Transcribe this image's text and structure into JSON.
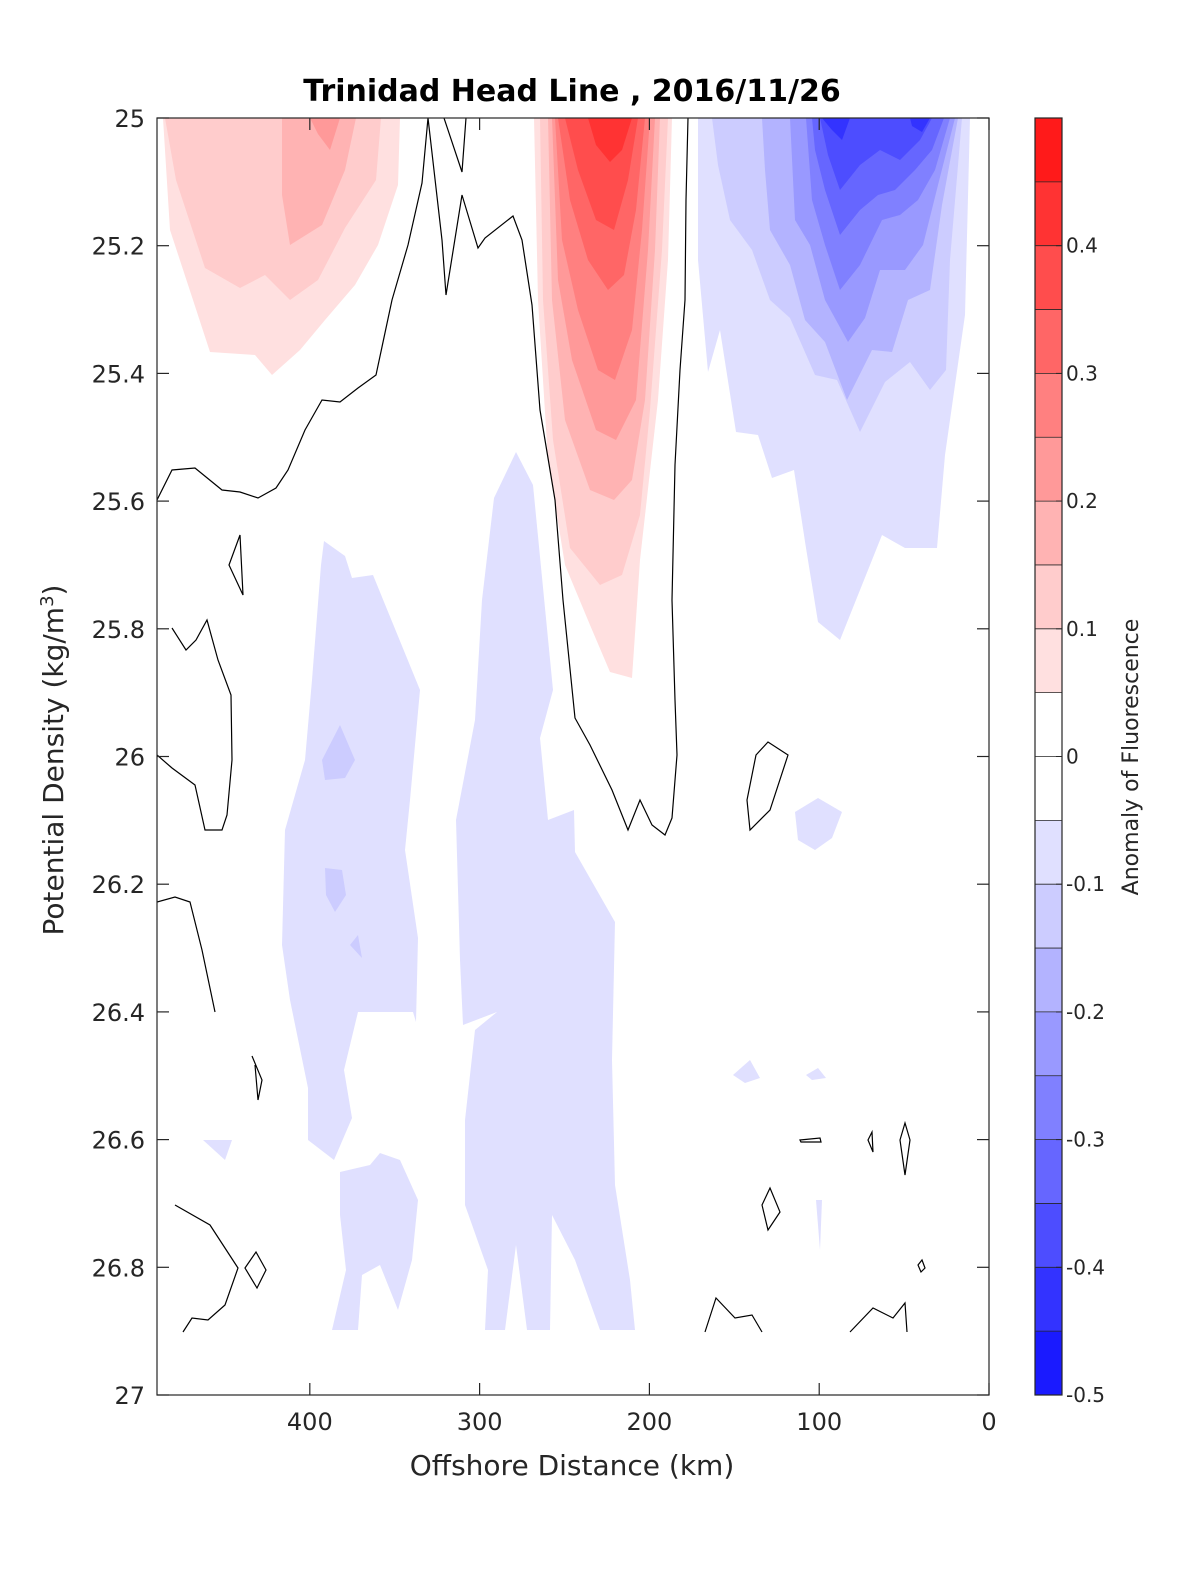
{
  "chart_data": {
    "type": "heatmap",
    "subtype": "filled-contour",
    "title": "Trinidad Head Line , 2016/11/26",
    "xlabel": "Offshore Distance (km)",
    "ylabel": "Potential Density (kg/m",
    "ylabel_sup": "3",
    "ylabel_end": ")",
    "x_axis": {
      "lim": [
        490,
        0
      ],
      "direction": "reversed",
      "ticks": [
        400,
        300,
        200,
        100,
        0
      ],
      "tick_labels": [
        "400",
        "300",
        "200",
        "100",
        "0"
      ]
    },
    "y_axis": {
      "lim": [
        25,
        27
      ],
      "direction": "down",
      "ticks": [
        25,
        25.2,
        25.4,
        25.6,
        25.8,
        26,
        26.2,
        26.4,
        26.6,
        26.8,
        27
      ],
      "tick_labels": [
        "25",
        "25.2",
        "25.4",
        "25.6",
        "25.8",
        "26",
        "26.2",
        "26.4",
        "26.6",
        "26.8",
        "27"
      ]
    },
    "colorbar": {
      "label": "Anomaly of Fluorescence",
      "lim": [
        -0.5,
        0.5
      ],
      "ticks": [
        0.4,
        0.3,
        0.2,
        0.1,
        0,
        -0.1,
        -0.2,
        -0.3,
        -0.4,
        -0.5
      ],
      "tick_labels": [
        "0.4",
        "0.3",
        "0.2",
        "0.1",
        "0",
        "-0.1",
        "-0.2",
        "-0.3",
        "-0.4",
        "-0.5"
      ],
      "levels": [
        -0.5,
        -0.45,
        -0.35,
        -0.25,
        -0.15,
        -0.05,
        0.05,
        0.15,
        0.25,
        0.35,
        0.45,
        0.5
      ],
      "colors": [
        "#1a1aff",
        "#3333ff",
        "#4d4dff",
        "#6666ff",
        "#8080ff",
        "#9999ff",
        "#b3b3ff",
        "#ccccff",
        "#e0e0ff",
        "#ffffff",
        "#ffffff",
        "#ffe0e0",
        "#ffcccc",
        "#ffb3b3",
        "#ff9999",
        "#ff8080",
        "#ff6666",
        "#ff4d4d",
        "#ff3333",
        "#ff1a1a"
      ],
      "location": "right"
    },
    "features": [
      {
        "name": "positive anomaly core",
        "x_range": [
          175,
          270
        ],
        "y_range": [
          25,
          25.9
        ],
        "max_value": 0.4,
        "center": [
          220,
          25.05
        ]
      },
      {
        "name": "positive anomaly offshore",
        "x_range": [
          345,
          490
        ],
        "y_range": [
          25,
          25.4
        ],
        "max_value": 0.2,
        "center": [
          390,
          25.05
        ]
      },
      {
        "name": "negative anomaly nearshore",
        "x_range": [
          12,
          170
        ],
        "y_range": [
          25,
          25.8
        ],
        "min_value": -0.4,
        "center": [
          90,
          25.05
        ]
      },
      {
        "name": "weak negative band 1",
        "x_range": [
          295,
          415
        ],
        "y_range": [
          25.65,
          26.9
        ],
        "min_value": -0.1
      },
      {
        "name": "weak negative band 2",
        "x_range": [
          205,
          310
        ],
        "y_range": [
          25.52,
          26.9
        ],
        "min_value": -0.1
      }
    ],
    "grid": false,
    "contour_lines": "zero contour in black"
  }
}
